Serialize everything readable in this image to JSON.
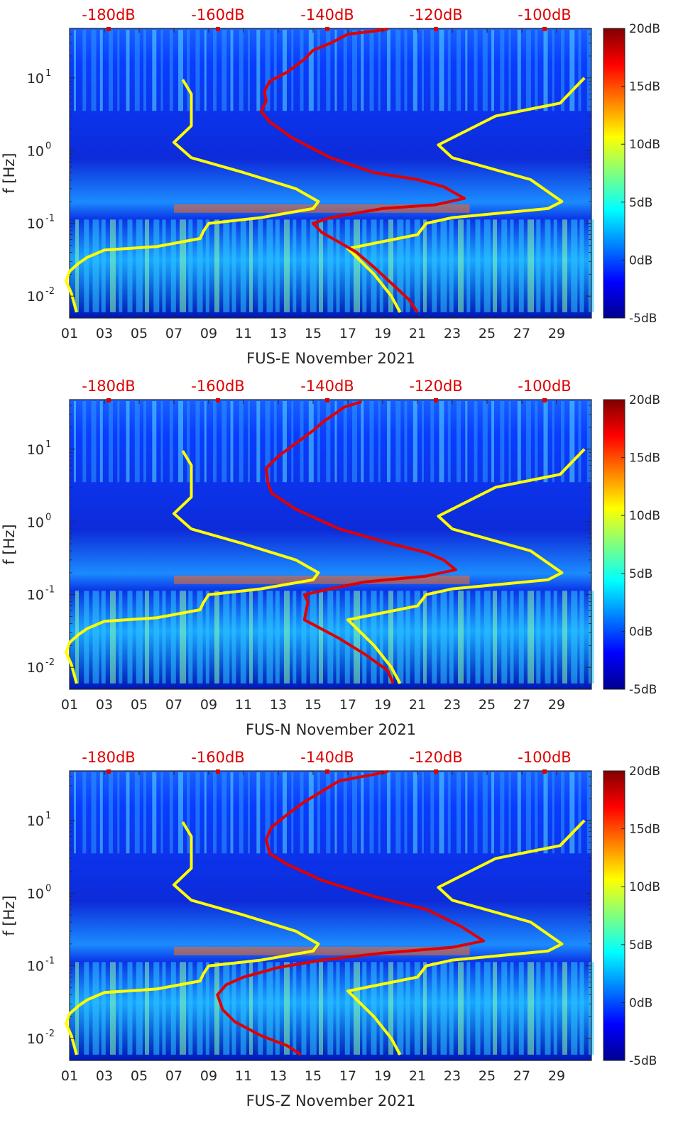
{
  "chart_data": [
    {
      "type": "heatmap",
      "xlabel": "FUS-E November 2021",
      "ylabel": "f [Hz]",
      "x_ticks": [
        "01",
        "03",
        "05",
        "07",
        "09",
        "11",
        "13",
        "15",
        "17",
        "19",
        "21",
        "23",
        "25",
        "27",
        "29"
      ],
      "y_ticks": [
        {
          "exp": "1",
          "value": 10
        },
        {
          "exp": "0",
          "value": 1
        },
        {
          "exp": "-1",
          "value": 0.1
        },
        {
          "exp": "-2",
          "value": 0.01
        }
      ],
      "top_ticks": [
        "-180dB",
        "-160dB",
        "-140dB",
        "-120dB",
        "-100dB"
      ],
      "colorbar": {
        "ticks": [
          "20dB",
          "15dB",
          "10dB",
          "5dB",
          "0dB",
          "-5dB"
        ],
        "range": [
          -5,
          20
        ]
      },
      "series": [
        {
          "color": "#ffff00",
          "points": [
            [
              7.5,
              9.5
            ],
            [
              8.0,
              6.0
            ],
            [
              8.0,
              2.2
            ],
            [
              7.0,
              1.3
            ],
            [
              8.0,
              0.8
            ],
            [
              11.0,
              0.5
            ],
            [
              14.0,
              0.3
            ],
            [
              15.3,
              0.2
            ],
            [
              15.0,
              0.16
            ],
            [
              12.0,
              0.12
            ],
            [
              9.0,
              0.1
            ],
            [
              8.7,
              0.078
            ],
            [
              8.5,
              0.062
            ],
            [
              6.0,
              0.048
            ],
            [
              3.0,
              0.043
            ],
            [
              2.0,
              0.034
            ],
            [
              1.5,
              0.028
            ],
            [
              1.0,
              0.022
            ],
            [
              0.8,
              0.016
            ],
            [
              1.1,
              0.011
            ],
            [
              1.4,
              0.006
            ]
          ]
        },
        {
          "color": "#ffff00",
          "points": [
            [
              30.6,
              10
            ],
            [
              29.2,
              4.5
            ],
            [
              25.5,
              3.0
            ],
            [
              22.2,
              1.2
            ],
            [
              23.0,
              0.8
            ],
            [
              27.5,
              0.4
            ],
            [
              29.3,
              0.2
            ],
            [
              28.5,
              0.16
            ],
            [
              23.0,
              0.12
            ],
            [
              21.5,
              0.1
            ],
            [
              21.0,
              0.07
            ],
            [
              17.0,
              0.045
            ],
            [
              18.5,
              0.02
            ],
            [
              19.5,
              0.01
            ],
            [
              20.0,
              0.006
            ]
          ]
        },
        {
          "color": "#e00000",
          "points": [
            [
              19.3,
              47
            ],
            [
              18.5,
              44
            ],
            [
              17.0,
              40
            ],
            [
              16.0,
              30
            ],
            [
              15.0,
              24
            ],
            [
              14.5,
              18
            ],
            [
              13.5,
              12
            ],
            [
              12.5,
              9
            ],
            [
              12.2,
              6.5
            ],
            [
              12.3,
              4.8
            ],
            [
              12.0,
              3.5
            ],
            [
              12.5,
              2.5
            ],
            [
              13.8,
              1.5
            ],
            [
              16.0,
              0.8
            ],
            [
              18.5,
              0.5
            ],
            [
              21.0,
              0.4
            ],
            [
              22.5,
              0.32
            ],
            [
              23.7,
              0.22
            ],
            [
              22.0,
              0.18
            ],
            [
              19.0,
              0.16
            ],
            [
              16.0,
              0.12
            ],
            [
              15.0,
              0.1
            ],
            [
              15.5,
              0.075
            ],
            [
              16.5,
              0.055
            ],
            [
              17.5,
              0.04
            ],
            [
              18.5,
              0.025
            ],
            [
              19.5,
              0.015
            ],
            [
              20.5,
              0.009
            ],
            [
              21.0,
              0.006
            ]
          ]
        }
      ]
    },
    {
      "type": "heatmap",
      "xlabel": "FUS-N November 2021",
      "ylabel": "f [Hz]",
      "x_ticks": [
        "01",
        "03",
        "05",
        "07",
        "09",
        "11",
        "13",
        "15",
        "17",
        "19",
        "21",
        "23",
        "25",
        "27",
        "29"
      ],
      "y_ticks": [
        {
          "exp": "1",
          "value": 10
        },
        {
          "exp": "0",
          "value": 1
        },
        {
          "exp": "-1",
          "value": 0.1
        },
        {
          "exp": "-2",
          "value": 0.01
        }
      ],
      "top_ticks": [
        "-180dB",
        "-160dB",
        "-140dB",
        "-120dB",
        "-100dB"
      ],
      "colorbar": {
        "ticks": [
          "20dB",
          "15dB",
          "10dB",
          "5dB",
          "0dB",
          "-5dB"
        ],
        "range": [
          -5,
          20
        ]
      },
      "series": [
        {
          "color": "#ffff00",
          "points": [
            [
              7.5,
              9.5
            ],
            [
              8.0,
              6.0
            ],
            [
              8.0,
              2.2
            ],
            [
              7.0,
              1.3
            ],
            [
              8.0,
              0.8
            ],
            [
              11.0,
              0.5
            ],
            [
              14.0,
              0.3
            ],
            [
              15.3,
              0.2
            ],
            [
              15.0,
              0.16
            ],
            [
              12.0,
              0.12
            ],
            [
              9.0,
              0.1
            ],
            [
              8.7,
              0.078
            ],
            [
              8.5,
              0.062
            ],
            [
              6.0,
              0.048
            ],
            [
              3.0,
              0.043
            ],
            [
              2.0,
              0.034
            ],
            [
              1.5,
              0.028
            ],
            [
              1.0,
              0.022
            ],
            [
              0.8,
              0.016
            ],
            [
              1.1,
              0.011
            ],
            [
              1.4,
              0.006
            ]
          ]
        },
        {
          "color": "#ffff00",
          "points": [
            [
              30.6,
              10
            ],
            [
              29.2,
              4.5
            ],
            [
              25.5,
              3.0
            ],
            [
              22.2,
              1.2
            ],
            [
              23.0,
              0.8
            ],
            [
              27.5,
              0.4
            ],
            [
              29.3,
              0.2
            ],
            [
              28.5,
              0.16
            ],
            [
              23.0,
              0.12
            ],
            [
              21.5,
              0.1
            ],
            [
              21.0,
              0.07
            ],
            [
              17.0,
              0.045
            ],
            [
              18.5,
              0.02
            ],
            [
              19.5,
              0.01
            ],
            [
              20.0,
              0.006
            ]
          ]
        },
        {
          "color": "#e00000",
          "points": [
            [
              17.8,
              45
            ],
            [
              16.8,
              38
            ],
            [
              16.2,
              30
            ],
            [
              15.6,
              24
            ],
            [
              15.0,
              18
            ],
            [
              14.0,
              12
            ],
            [
              13.0,
              8
            ],
            [
              12.3,
              5.5
            ],
            [
              12.4,
              3.5
            ],
            [
              12.6,
              2.5
            ],
            [
              14.0,
              1.5
            ],
            [
              16.5,
              0.8
            ],
            [
              19.5,
              0.5
            ],
            [
              21.5,
              0.38
            ],
            [
              22.5,
              0.3
            ],
            [
              23.2,
              0.22
            ],
            [
              21.5,
              0.18
            ],
            [
              18.0,
              0.15
            ],
            [
              16.0,
              0.12
            ],
            [
              14.5,
              0.1
            ],
            [
              14.7,
              0.08
            ],
            [
              14.6,
              0.06
            ],
            [
              14.5,
              0.045
            ],
            [
              16.5,
              0.025
            ],
            [
              18.0,
              0.015
            ],
            [
              19.3,
              0.009
            ],
            [
              19.6,
              0.006
            ]
          ]
        }
      ]
    },
    {
      "type": "heatmap",
      "xlabel": "FUS-Z November 2021",
      "ylabel": "f [Hz]",
      "x_ticks": [
        "01",
        "03",
        "05",
        "07",
        "09",
        "11",
        "13",
        "15",
        "17",
        "19",
        "21",
        "23",
        "25",
        "27",
        "29"
      ],
      "y_ticks": [
        {
          "exp": "1",
          "value": 10
        },
        {
          "exp": "0",
          "value": 1
        },
        {
          "exp": "-1",
          "value": 0.1
        },
        {
          "exp": "-2",
          "value": 0.01
        }
      ],
      "top_ticks": [
        "-180dB",
        "-160dB",
        "-140dB",
        "-120dB",
        "-100dB"
      ],
      "colorbar": {
        "ticks": [
          "20dB",
          "15dB",
          "10dB",
          "5dB",
          "0dB",
          "-5dB"
        ],
        "range": [
          -5,
          20
        ]
      },
      "series": [
        {
          "color": "#ffff00",
          "points": [
            [
              7.5,
              9.5
            ],
            [
              8.0,
              6.0
            ],
            [
              8.0,
              2.2
            ],
            [
              7.0,
              1.3
            ],
            [
              8.0,
              0.8
            ],
            [
              11.0,
              0.5
            ],
            [
              14.0,
              0.3
            ],
            [
              15.3,
              0.2
            ],
            [
              15.0,
              0.16
            ],
            [
              12.0,
              0.12
            ],
            [
              9.0,
              0.1
            ],
            [
              8.7,
              0.078
            ],
            [
              8.5,
              0.062
            ],
            [
              6.0,
              0.048
            ],
            [
              3.0,
              0.043
            ],
            [
              2.0,
              0.034
            ],
            [
              1.5,
              0.028
            ],
            [
              1.0,
              0.022
            ],
            [
              0.8,
              0.016
            ],
            [
              1.1,
              0.011
            ],
            [
              1.4,
              0.006
            ]
          ]
        },
        {
          "color": "#ffff00",
          "points": [
            [
              30.6,
              10
            ],
            [
              29.2,
              4.5
            ],
            [
              25.5,
              3.0
            ],
            [
              22.2,
              1.2
            ],
            [
              23.0,
              0.8
            ],
            [
              27.5,
              0.4
            ],
            [
              29.3,
              0.2
            ],
            [
              28.5,
              0.16
            ],
            [
              23.0,
              0.12
            ],
            [
              21.5,
              0.1
            ],
            [
              21.0,
              0.07
            ],
            [
              17.0,
              0.045
            ],
            [
              18.5,
              0.02
            ],
            [
              19.5,
              0.01
            ],
            [
              20.0,
              0.006
            ]
          ]
        },
        {
          "color": "#e00000",
          "points": [
            [
              19.3,
              47
            ],
            [
              18.3,
              42
            ],
            [
              16.5,
              35
            ],
            [
              15.5,
              25
            ],
            [
              14.5,
              18
            ],
            [
              13.5,
              12
            ],
            [
              12.6,
              8
            ],
            [
              12.3,
              5.5
            ],
            [
              12.5,
              3.5
            ],
            [
              13.5,
              2.5
            ],
            [
              15.5,
              1.5
            ],
            [
              18.5,
              0.9
            ],
            [
              21.5,
              0.6
            ],
            [
              23.5,
              0.35
            ],
            [
              24.8,
              0.22
            ],
            [
              23.0,
              0.18
            ],
            [
              19.0,
              0.15
            ],
            [
              15.5,
              0.12
            ],
            [
              13.0,
              0.095
            ],
            [
              11.0,
              0.07
            ],
            [
              10.0,
              0.055
            ],
            [
              9.5,
              0.04
            ],
            [
              9.8,
              0.025
            ],
            [
              10.5,
              0.017
            ],
            [
              12.0,
              0.011
            ],
            [
              13.5,
              0.008
            ],
            [
              14.3,
              0.006
            ]
          ]
        }
      ]
    }
  ]
}
